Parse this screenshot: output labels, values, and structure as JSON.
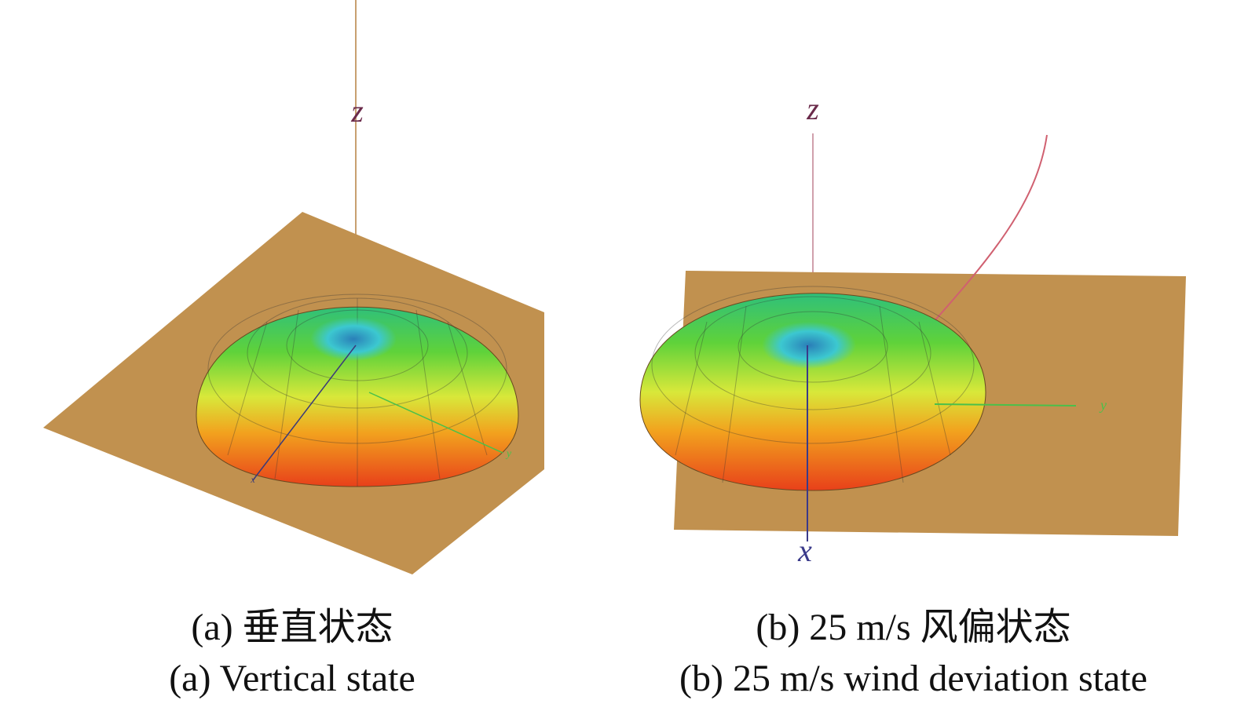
{
  "panels": [
    {
      "axis_labels": {
        "z": "z",
        "x": "x",
        "y": "y"
      },
      "caption_cn": "(a) 垂直状态",
      "caption_en": "(a) Vertical state"
    },
    {
      "axis_labels": {
        "z": "z",
        "x": "x",
        "y": "y"
      },
      "caption_cn": "(b) 25 m/s 风偏状态",
      "caption_en": "(b) 25 m/s wind deviation state"
    }
  ]
}
